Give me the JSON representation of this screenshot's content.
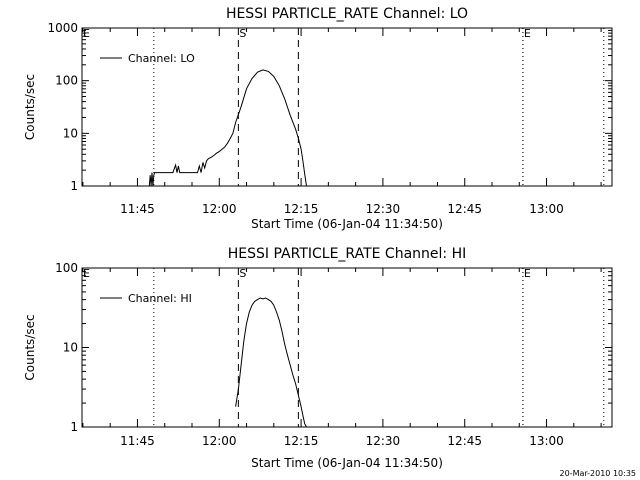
{
  "chart_data": [
    {
      "type": "line",
      "title": "HESSI PARTICLE_RATE Channel: LO",
      "ylabel": "Counts/sec",
      "xlabel": "Start Time (06-Jan-04 11:34:50)",
      "yscale": "log",
      "ylim": [
        1,
        1000
      ],
      "ytick_labels": [
        "1",
        "10",
        "100",
        "1000"
      ],
      "xlim": [
        "11:34:50",
        "13:12:00"
      ],
      "xtick_labels": [
        "11:45",
        "12:00",
        "12:15",
        "12:30",
        "12:45",
        "13:00"
      ],
      "legend": {
        "placement": "top-left",
        "label": "Channel: LO"
      },
      "markers": [
        {
          "label": "S",
          "time": "12:03:30",
          "style": "dashed"
        },
        {
          "label": "",
          "time": "12:14:30",
          "style": "dashed"
        },
        {
          "label": "E",
          "time": "12:55:40",
          "style": "dotted"
        }
      ],
      "dotted_lines": [
        "11:48:00",
        "12:55:40",
        "13:10:30"
      ],
      "corner_mark": "E",
      "series": [
        {
          "x": [
            "11:47:10",
            "11:47:20",
            "11:47:30",
            "11:47:40",
            "11:47:50",
            "11:48:00",
            "11:48:10",
            "11:48:20",
            "11:50:00",
            "11:51:30",
            "11:52:00",
            "11:52:15",
            "11:52:30",
            "11:52:45",
            "11:53:00",
            "11:56:00",
            "11:56:20",
            "11:56:40",
            "11:57:00",
            "11:57:20",
            "11:57:40",
            "11:58:00",
            "11:58:30",
            "11:59:00",
            "11:59:30",
            "12:00:00",
            "12:00:30",
            "12:01:00",
            "12:01:30",
            "12:02:00",
            "12:02:30",
            "12:03:00",
            "12:04:00",
            "12:05:00",
            "12:06:00",
            "12:07:00",
            "12:08:00",
            "12:09:00",
            "12:10:00",
            "12:11:00",
            "12:12:00",
            "12:13:00",
            "12:14:00",
            "12:14:30",
            "12:15:00",
            "12:15:20",
            "12:15:40",
            "12:16:00"
          ],
          "y": [
            1,
            1.6,
            1,
            1.8,
            1,
            1.6,
            1.8,
            1.8,
            1.8,
            1.8,
            2.5,
            1.8,
            2.4,
            1.8,
            1.8,
            1.8,
            2.4,
            1.8,
            2.8,
            2.2,
            3.0,
            3.3,
            3.5,
            3.8,
            4.2,
            4.5,
            5,
            5.5,
            6.5,
            8,
            10,
            16,
            32,
            70,
            110,
            145,
            160,
            150,
            120,
            80,
            45,
            22,
            12,
            8,
            5,
            3,
            1.7,
            1
          ]
        }
      ]
    },
    {
      "type": "line",
      "title": "HESSI PARTICLE_RATE Channel: HI",
      "ylabel": "Counts/sec",
      "xlabel": "Start Time (06-Jan-04 11:34:50)",
      "yscale": "log",
      "ylim": [
        1,
        100
      ],
      "ytick_labels": [
        "1",
        "10",
        "100"
      ],
      "xlim": [
        "11:34:50",
        "13:12:00"
      ],
      "xtick_labels": [
        "11:45",
        "12:00",
        "12:15",
        "12:30",
        "12:45",
        "13:00"
      ],
      "legend": {
        "placement": "top-left",
        "label": "Channel: HI"
      },
      "markers": [
        {
          "label": "S",
          "time": "12:03:30",
          "style": "dashed"
        },
        {
          "label": "",
          "time": "12:14:30",
          "style": "dashed"
        },
        {
          "label": "E",
          "time": "12:55:40",
          "style": "dotted"
        }
      ],
      "dotted_lines": [
        "11:48:00",
        "12:55:40",
        "13:10:30"
      ],
      "corner_mark": "E",
      "series": [
        {
          "x": [
            "12:03:00",
            "12:03:30",
            "12:04:00",
            "12:04:30",
            "12:05:00",
            "12:05:30",
            "12:06:00",
            "12:06:30",
            "12:07:00",
            "12:07:30",
            "12:08:00",
            "12:08:30",
            "12:09:00",
            "12:09:30",
            "12:10:00",
            "12:10:30",
            "12:11:00",
            "12:11:30",
            "12:12:00",
            "12:12:30",
            "12:13:00",
            "12:13:30",
            "12:14:00",
            "12:14:30",
            "12:15:00",
            "12:15:20",
            "12:15:40",
            "12:16:00"
          ],
          "y": [
            1.8,
            3,
            6,
            12,
            20,
            28,
            34,
            38,
            40,
            42,
            41,
            42,
            40,
            38,
            34,
            28,
            22,
            16,
            11,
            8,
            6,
            4.5,
            3.5,
            2.5,
            1.8,
            1.4,
            1.1,
            1
          ]
        }
      ]
    }
  ],
  "footer": {
    "timestamp": "20-Mar-2010 10:35"
  }
}
